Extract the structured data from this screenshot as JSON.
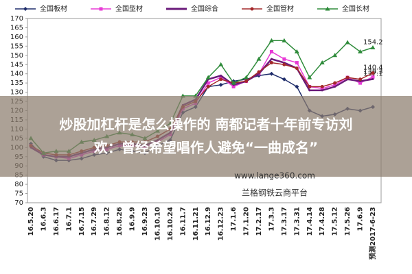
{
  "chart_data": {
    "type": "line",
    "categories": [
      "16.5.20",
      "16.6.3",
      "16.6.17",
      "16.7.1",
      "16.7.15",
      "16.7.29",
      "16.8.12",
      "16.8.26",
      "16.9.9",
      "16.9.23",
      "16.10.10",
      "16.10.24",
      "16.11.7",
      "16.11.21",
      "16.12.9",
      "16.12.23",
      "17.1.6",
      "17.1.20",
      "17.2.17",
      "17.3.3",
      "17.3.17",
      "17.3.31",
      "17.4.14",
      "17.4.28",
      "17.5.12",
      "17.5.26",
      "17.6.9",
      "预测2017-6-23"
    ],
    "series": [
      {
        "name": "全国板材",
        "color": "#1f2d6b",
        "marker": "diamond",
        "values": [
          102,
          95,
          93,
          93,
          94,
          96,
          97,
          99,
          98,
          97,
          101,
          104,
          119,
          122,
          133,
          134,
          136,
          137,
          139,
          140,
          137,
          133,
          120,
          117,
          118,
          121,
          120,
          122
        ]
      },
      {
        "name": "全国型材",
        "color": "#e83ad6",
        "marker": "square",
        "values": [
          101,
          96,
          95,
          94,
          96,
          98,
          99,
          101,
          101,
          100,
          103,
          107,
          121,
          124,
          135,
          138,
          133,
          136,
          140,
          152,
          148,
          146,
          133,
          132,
          134,
          138,
          135,
          138.3
        ],
        "end_label": "138.3"
      },
      {
        "name": "全国综合",
        "color": "#6a1a7a",
        "marker": "none",
        "values": [
          100,
          96,
          95,
          95,
          97,
          99,
          100,
          102,
          102,
          101,
          104,
          108,
          123,
          126,
          137,
          139,
          134,
          136,
          140,
          148,
          146,
          143,
          131,
          131,
          133,
          137,
          136,
          137.1
        ],
        "end_label": "137.1"
      },
      {
        "name": "全国管材",
        "color": "#a3282a",
        "marker": "circle",
        "values": [
          101,
          97,
          96,
          96,
          98,
          100,
          101,
          103,
          103,
          103,
          106,
          110,
          122,
          125,
          133,
          137,
          135,
          136,
          141,
          146,
          145,
          143,
          133,
          133,
          135,
          138,
          137,
          140.4
        ],
        "end_label": "140.4"
      },
      {
        "name": "全国长材",
        "color": "#2e8b3a",
        "marker": "triangle",
        "values": [
          105,
          97,
          98,
          98,
          103,
          104,
          106,
          108,
          107,
          105,
          109,
          113,
          128,
          128,
          138,
          145,
          135,
          138,
          148,
          158,
          158,
          152,
          138,
          146,
          150,
          157,
          152,
          154.2
        ],
        "end_label": "154.2"
      }
    ],
    "ylim": [
      70,
      170
    ],
    "yticks": [
      70,
      75,
      80,
      85,
      90,
      95,
      100,
      105,
      110,
      115,
      120,
      125,
      130,
      135,
      140,
      145,
      150,
      155,
      160,
      165,
      170
    ],
    "grid": false,
    "legend": "top"
  },
  "overlay": {
    "headline": [
      "炒股加杠杆是怎么操作的 南都记者十年前专访刘",
      "欢：曾经希望唱作人避免“一曲成名”"
    ],
    "watermark": [
      "www.lange360.com",
      "兰格钢铁云商平台"
    ]
  }
}
